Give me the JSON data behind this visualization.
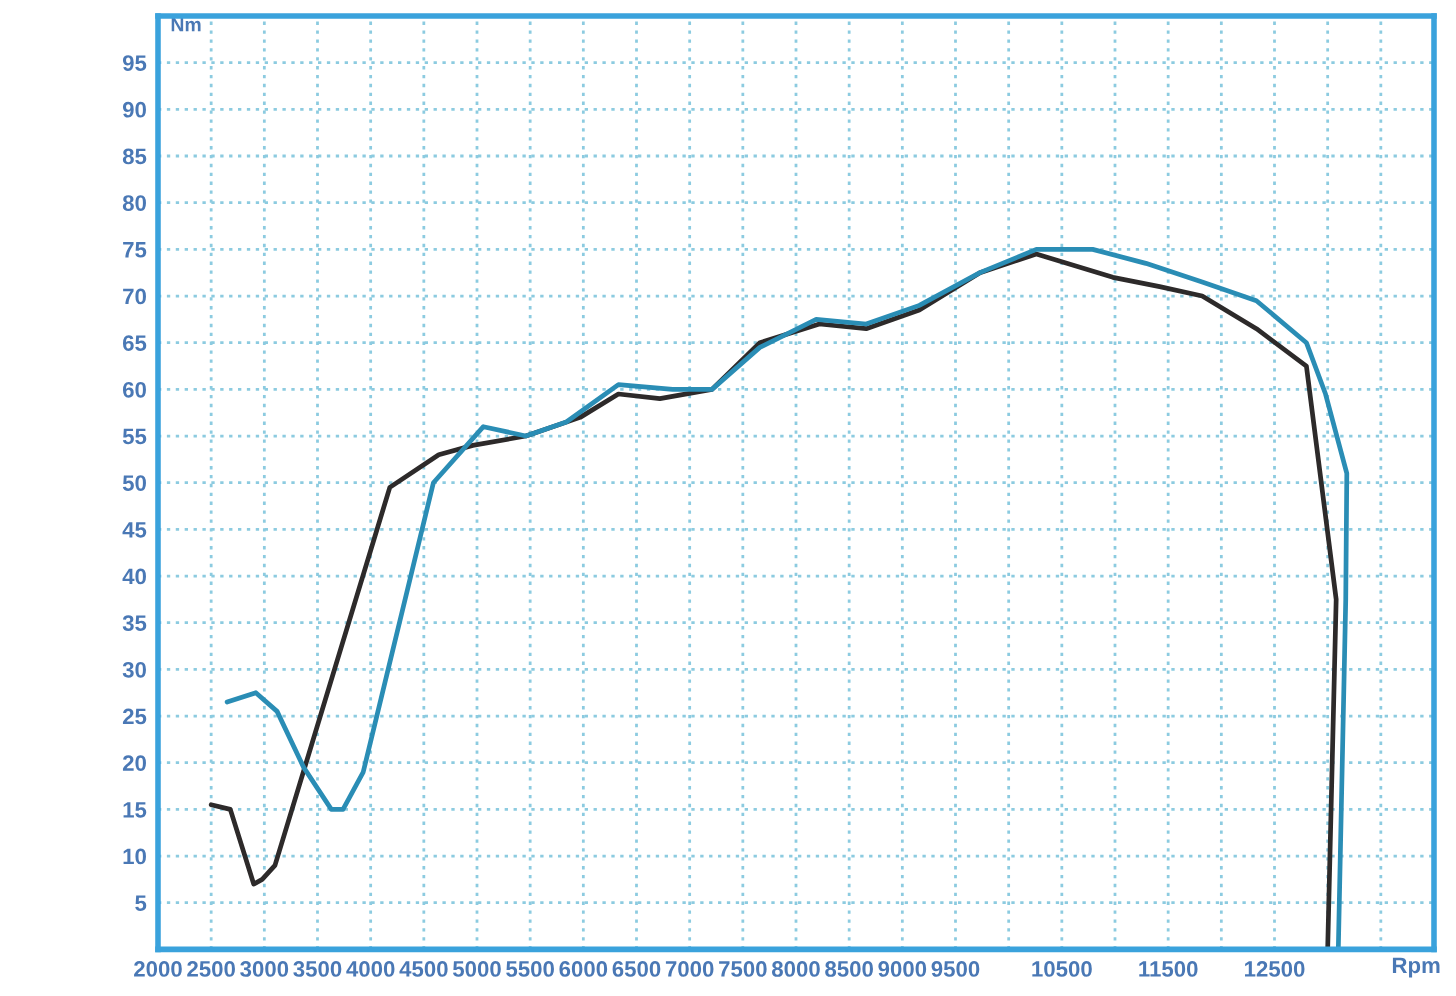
{
  "chart_data": {
    "type": "line",
    "xlabel": "Rpm",
    "ylabel": "Nm",
    "grid": true,
    "line_style": "solid",
    "xlim": [
      2000,
      14000
    ],
    "ylim": [
      0,
      100
    ],
    "xticks": [
      2000,
      2500,
      3000,
      3500,
      4000,
      4500,
      5000,
      5500,
      6000,
      6500,
      7000,
      7500,
      8000,
      8500,
      9000,
      9500,
      {
        "value": 10000,
        "label": null
      },
      10500,
      {
        "value": 11000,
        "label": null
      },
      11500,
      {
        "value": 12000,
        "label": null
      },
      12500,
      {
        "value": 13000,
        "label": null
      },
      {
        "value": 13500,
        "label": null
      }
    ],
    "yticks": [
      5,
      10,
      15,
      20,
      25,
      30,
      35,
      40,
      45,
      50,
      55,
      60,
      65,
      70,
      75,
      80,
      85,
      90,
      95
    ],
    "series": [
      {
        "color": "#2d2a2a",
        "x": [
          2500,
          2680,
          2900,
          2980,
          3100,
          4180,
          4640,
          4960,
          5460,
          5970,
          6330,
          6720,
          7210,
          7660,
          8220,
          8660,
          9160,
          9730,
          10260,
          10980,
          11420,
          11820,
          12330,
          12800,
          13080,
          13000
        ],
        "values": [
          15.5,
          15,
          7,
          7.5,
          9,
          49.5,
          53,
          54,
          55,
          57,
          59.5,
          59,
          60,
          65,
          67,
          66.5,
          68.5,
          72.5,
          74.5,
          72,
          71,
          70,
          66.5,
          62.5,
          37.5,
          0
        ]
      },
      {
        "color": "#2a8db5",
        "x": [
          2650,
          2920,
          3120,
          3370,
          3630,
          3740,
          3930,
          4590,
          5060,
          5460,
          5840,
          6330,
          6840,
          7210,
          7660,
          8190,
          8660,
          9160,
          9730,
          10260,
          10790,
          11290,
          11820,
          12330,
          12800,
          12980,
          13180,
          13170,
          13100
        ],
        "values": [
          26.5,
          27.5,
          25.5,
          19.5,
          15,
          15,
          19,
          50,
          56,
          55,
          56.5,
          60.5,
          60,
          60,
          64.5,
          67.5,
          67,
          69,
          72.5,
          75,
          75,
          73.5,
          71.5,
          69.5,
          65,
          59.5,
          51,
          37.5,
          0
        ]
      }
    ]
  }
}
